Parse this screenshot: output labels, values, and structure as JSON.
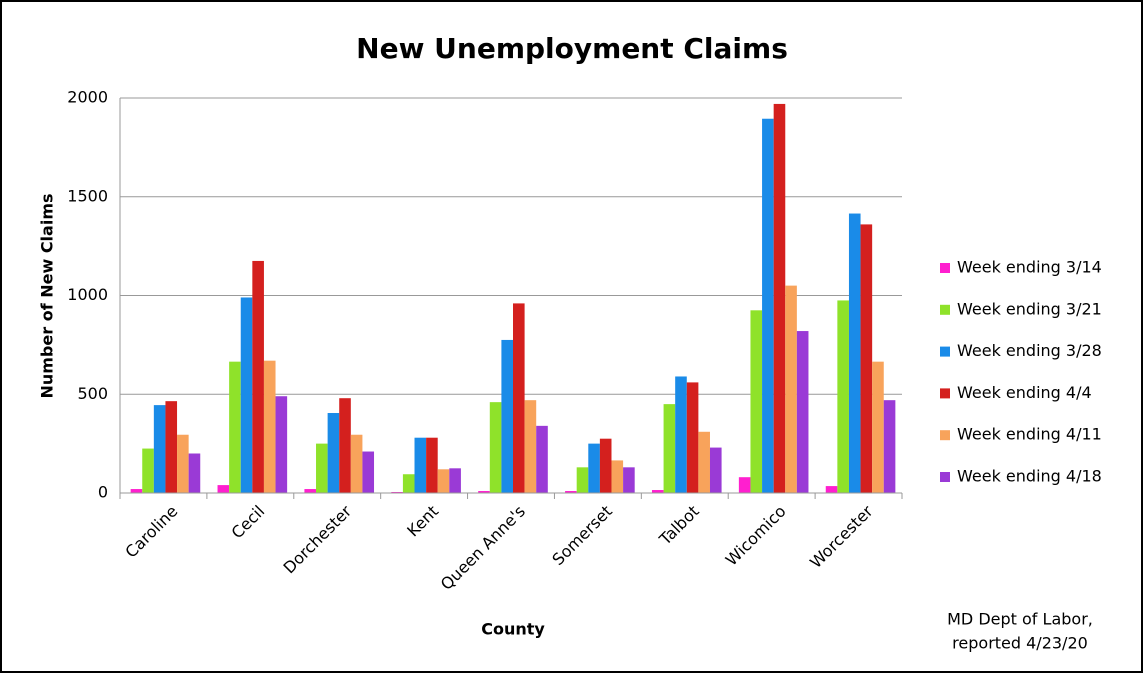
{
  "chart_data": {
    "type": "bar",
    "title": "New Unemployment Claims",
    "x_label": "County",
    "y_label": "Number of New Claims",
    "categories": [
      "Caroline",
      "Cecil",
      "Dorchester",
      "Kent",
      "Queen Anne's",
      "Somerset",
      "Talbot",
      "Wicomico",
      "Worcester"
    ],
    "series": [
      {
        "name": "Week ending 3/14",
        "color": "#ff1fcf",
        "values": [
          20,
          40,
          20,
          5,
          10,
          10,
          15,
          80,
          35
        ]
      },
      {
        "name": "Week ending 3/21",
        "color": "#8fe22a",
        "values": [
          225,
          665,
          250,
          95,
          460,
          130,
          450,
          925,
          975
        ]
      },
      {
        "name": "Week ending 3/28",
        "color": "#1a8be8",
        "values": [
          445,
          990,
          405,
          280,
          775,
          250,
          590,
          1895,
          1415
        ]
      },
      {
        "name": "Week ending 4/4",
        "color": "#d4201e",
        "values": [
          465,
          1175,
          480,
          280,
          960,
          275,
          560,
          1970,
          1360
        ]
      },
      {
        "name": "Week ending 4/11",
        "color": "#f8a35b",
        "values": [
          295,
          670,
          295,
          120,
          470,
          165,
          310,
          1050,
          665
        ]
      },
      {
        "name": "Week ending 4/18",
        "color": "#9a3ad6",
        "values": [
          200,
          490,
          210,
          125,
          340,
          130,
          230,
          820,
          470
        ]
      }
    ],
    "ylim": [
      0,
      2000
    ],
    "yticks": [
      0,
      500,
      1000,
      1500,
      2000
    ],
    "grid": true,
    "legend": "right",
    "source": [
      "MD Dept of Labor,",
      "reported 4/23/20"
    ]
  }
}
